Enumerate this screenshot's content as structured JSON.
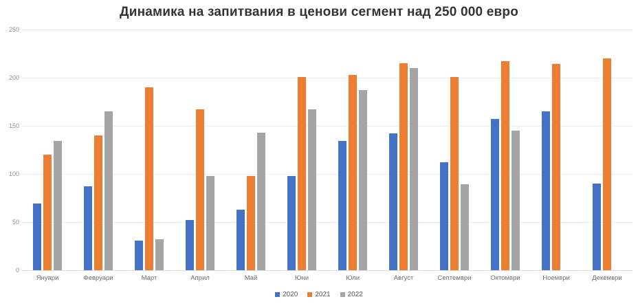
{
  "chart_data": {
    "type": "bar",
    "title": "Динамика на запитвания в ценови сегмент над 250 000 евро",
    "categories": [
      "Януари",
      "Февруари",
      "Март",
      "Април",
      "Май",
      "Юни",
      "Юли",
      "Август",
      "Септември",
      "Октомври",
      "Ноември",
      "Декември"
    ],
    "series": [
      {
        "name": "2020",
        "color": "#4472C4",
        "values": [
          69,
          87,
          31,
          52,
          63,
          98,
          134,
          142,
          112,
          157,
          165,
          90
        ]
      },
      {
        "name": "2021",
        "color": "#ED7D31",
        "values": [
          120,
          140,
          190,
          167,
          98,
          201,
          203,
          215,
          201,
          217,
          214,
          220
        ]
      },
      {
        "name": "2022",
        "color": "#A5A5A5",
        "values": [
          134,
          165,
          32,
          98,
          143,
          167,
          187,
          210,
          89,
          145,
          null,
          null
        ]
      }
    ],
    "xlabel": "",
    "ylabel": "",
    "ylim": [
      0,
      250
    ],
    "ytick_step": 50,
    "grid": "horizontal",
    "legend_position": "bottom-center",
    "colors": {
      "title_text": "#333333",
      "axis_text": "#8f8f8f",
      "gridline": "#ebebeb",
      "axis_line": "#d9d9d9",
      "background": "#ffffff"
    }
  }
}
